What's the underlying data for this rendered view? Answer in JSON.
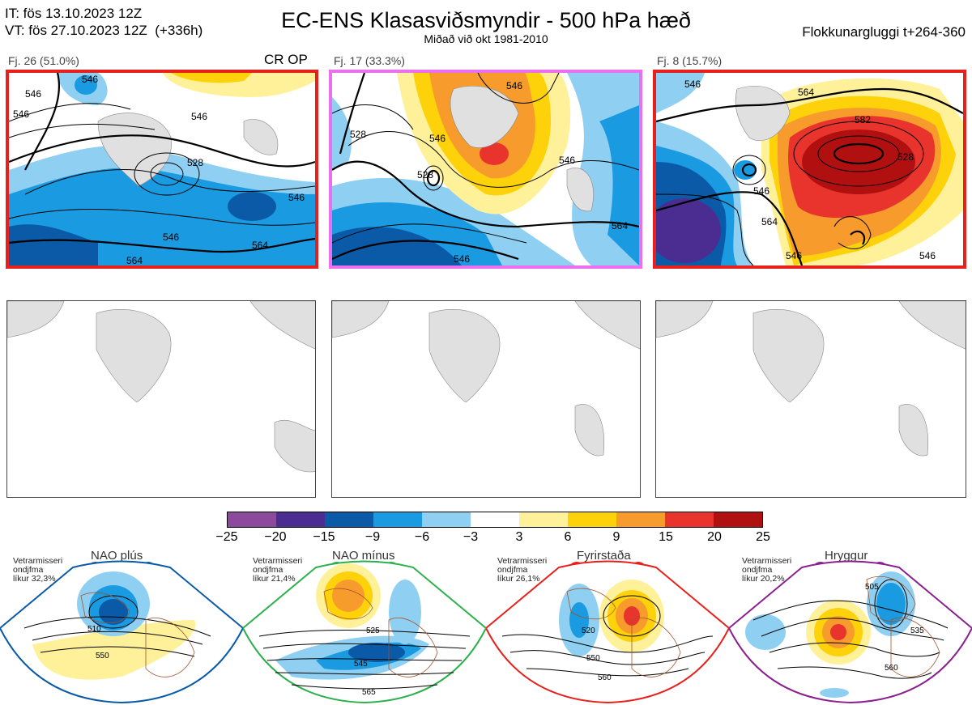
{
  "header": {
    "it_line": "IT: fös 13.10.2023 12Z",
    "vt_line": "VT: fös 27.10.2023 12Z  (+336h)",
    "title": "EC-ENS Klasasviðsmyndir - 500 hPa hæð",
    "subtitle": "Miðað við okt 1981-2010",
    "window": "Flokkunargluggi t+264-360"
  },
  "clusters": [
    {
      "label": "Fj. 26 (51.0%)",
      "tag": "CR OP",
      "frame_color": "#e8201c",
      "contour_labels": [
        "546",
        "546",
        "528",
        "546",
        "546",
        "564",
        "564",
        "546",
        "546"
      ]
    },
    {
      "label": "Fj. 17 (33.3%)",
      "tag": "",
      "frame_color": "#ec6ff0",
      "contour_labels": [
        "528",
        "546",
        "528",
        "546",
        "564",
        "546",
        "546"
      ]
    },
    {
      "label": "Fj. 8 (15.7%)",
      "tag": "",
      "frame_color": "#e8201c",
      "contour_labels": [
        "546",
        "564",
        "582",
        "528",
        "546",
        "564",
        "546",
        "546"
      ]
    }
  ],
  "colorbar": {
    "colors": [
      "#8c4a9c",
      "#4b2d91",
      "#0a5aa8",
      "#1a9ae0",
      "#8fd0f2",
      "#ffffff",
      "#fff19a",
      "#fdd20a",
      "#f79c2c",
      "#e8342c",
      "#b01010"
    ],
    "labels": [
      "−25",
      "−20",
      "−15",
      "−9",
      "−6",
      "−3",
      "3",
      "6",
      "9",
      "15",
      "20",
      "25"
    ]
  },
  "regimes": [
    {
      "title": "NAO plús",
      "note1": "Vetrarmisseri",
      "note2": "ondjfma",
      "note3": "líkur 32,3%",
      "color": "#0a5aa8",
      "labels": [
        "510",
        "550"
      ]
    },
    {
      "title": "NAO mínus",
      "note1": "Vetrarmisseri",
      "note2": "ondjfma",
      "note3": "líkur 21,4%",
      "color": "#2cb04c",
      "labels": [
        "525",
        "545",
        "565"
      ]
    },
    {
      "title": "Fyrirstaða",
      "note1": "Vetrarmisseri",
      "note2": "ondjfma",
      "note3": "líkur 26,1%",
      "color": "#e8201c",
      "labels": [
        "520",
        "550",
        "560"
      ]
    },
    {
      "title": "Hryggur",
      "note1": "Vetrarmisseri",
      "note2": "ondjfma",
      "note3": "líkur 20,2%",
      "color": "#8b1f8f",
      "labels": [
        "505",
        "535",
        "560"
      ]
    }
  ]
}
